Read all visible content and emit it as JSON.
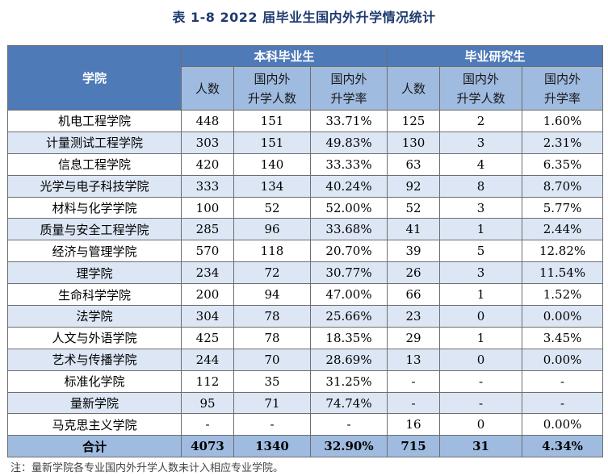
{
  "title": "表 1-8    2022 届毕业生国内外升学情况统计",
  "header": {
    "college": "学院",
    "undergrad_group": "本科毕业生",
    "grad_group": "毕业研究生",
    "col_count": "人数",
    "col_count_line1": "国内外",
    "col_count_line2": "升学人数",
    "col_rate_line1": "国内外",
    "col_rate_line2": "升学率"
  },
  "rows": [
    {
      "name": "机电工程学院",
      "u_n": "448",
      "u_up": "151",
      "u_rate": "33.71%",
      "g_n": "125",
      "g_up": "2",
      "g_rate": "1.60%"
    },
    {
      "name": "计量测试工程学院",
      "u_n": "303",
      "u_up": "151",
      "u_rate": "49.83%",
      "g_n": "130",
      "g_up": "3",
      "g_rate": "2.31%"
    },
    {
      "name": "信息工程学院",
      "u_n": "420",
      "u_up": "140",
      "u_rate": "33.33%",
      "g_n": "63",
      "g_up": "4",
      "g_rate": "6.35%"
    },
    {
      "name": "光学与电子科技学院",
      "u_n": "333",
      "u_up": "134",
      "u_rate": "40.24%",
      "g_n": "92",
      "g_up": "8",
      "g_rate": "8.70%"
    },
    {
      "name": "材料与化学学院",
      "u_n": "100",
      "u_up": "52",
      "u_rate": "52.00%",
      "g_n": "52",
      "g_up": "3",
      "g_rate": "5.77%"
    },
    {
      "name": "质量与安全工程学院",
      "u_n": "285",
      "u_up": "96",
      "u_rate": "33.68%",
      "g_n": "41",
      "g_up": "1",
      "g_rate": "2.44%"
    },
    {
      "name": "经济与管理学院",
      "u_n": "570",
      "u_up": "118",
      "u_rate": "20.70%",
      "g_n": "39",
      "g_up": "5",
      "g_rate": "12.82%"
    },
    {
      "name": "理学院",
      "u_n": "234",
      "u_up": "72",
      "u_rate": "30.77%",
      "g_n": "26",
      "g_up": "3",
      "g_rate": "11.54%"
    },
    {
      "name": "生命科学学院",
      "u_n": "200",
      "u_up": "94",
      "u_rate": "47.00%",
      "g_n": "66",
      "g_up": "1",
      "g_rate": "1.52%"
    },
    {
      "name": "法学院",
      "u_n": "304",
      "u_up": "78",
      "u_rate": "25.66%",
      "g_n": "23",
      "g_up": "0",
      "g_rate": "0.00%"
    },
    {
      "name": "人文与外语学院",
      "u_n": "425",
      "u_up": "78",
      "u_rate": "18.35%",
      "g_n": "29",
      "g_up": "1",
      "g_rate": "3.45%"
    },
    {
      "name": "艺术与传播学院",
      "u_n": "244",
      "u_up": "70",
      "u_rate": "28.69%",
      "g_n": "13",
      "g_up": "0",
      "g_rate": "0.00%"
    },
    {
      "name": "标准化学院",
      "u_n": "112",
      "u_up": "35",
      "u_rate": "31.25%",
      "g_n": "-",
      "g_up": "-",
      "g_rate": "-"
    },
    {
      "name": "量新学院",
      "u_n": "95",
      "u_up": "71",
      "u_rate": "74.74%",
      "g_n": "-",
      "g_up": "-",
      "g_rate": "-"
    },
    {
      "name": "马克思主义学院",
      "u_n": "-",
      "u_up": "-",
      "u_rate": "-",
      "g_n": "16",
      "g_up": "0",
      "g_rate": "0.00%"
    }
  ],
  "total": {
    "name": "合计",
    "u_n": "4073",
    "u_up": "1340",
    "u_rate": "32.90%",
    "g_n": "715",
    "g_up": "31",
    "g_rate": "4.34%"
  },
  "note": "注：量新学院各专业国内外升学人数未计入相应专业学院。",
  "colors": {
    "header_dark": "#4f7ab8",
    "header_light": "#9fbbe0",
    "row_alt": "#dce6f4"
  }
}
